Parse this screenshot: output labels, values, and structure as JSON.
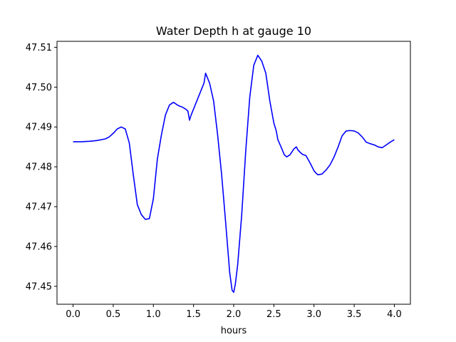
{
  "chart_data": {
    "type": "line",
    "title": "Water Depth h at gauge 10",
    "xlabel": "hours",
    "ylabel": "",
    "xlim": [
      -0.2,
      4.2
    ],
    "ylim": [
      47.4455,
      47.5115
    ],
    "grid": false,
    "x_ticks": [
      0.0,
      0.5,
      1.0,
      1.5,
      2.0,
      2.5,
      3.0,
      3.5,
      4.0
    ],
    "x_tick_labels": [
      "0.0",
      "0.5",
      "1.0",
      "1.5",
      "2.0",
      "2.5",
      "3.0",
      "3.5",
      "4.0"
    ],
    "y_ticks": [
      47.45,
      47.46,
      47.47,
      47.48,
      47.49,
      47.5,
      47.51
    ],
    "y_tick_labels": [
      "47.45",
      "47.46",
      "47.47",
      "47.48",
      "47.49",
      "47.50",
      "47.51"
    ],
    "series": [
      {
        "color": "#0000ff",
        "x": [
          0.0,
          0.1,
          0.2,
          0.3,
          0.4,
          0.45,
          0.5,
          0.55,
          0.6,
          0.65,
          0.7,
          0.75,
          0.8,
          0.85,
          0.9,
          0.95,
          1.0,
          1.05,
          1.1,
          1.15,
          1.2,
          1.25,
          1.3,
          1.33,
          1.36,
          1.4,
          1.43,
          1.45,
          1.47,
          1.5,
          1.55,
          1.6,
          1.63,
          1.65,
          1.67,
          1.7,
          1.75,
          1.8,
          1.85,
          1.9,
          1.95,
          1.98,
          2.0,
          2.02,
          2.05,
          2.1,
          2.15,
          2.2,
          2.25,
          2.3,
          2.35,
          2.4,
          2.45,
          2.5,
          2.53,
          2.55,
          2.6,
          2.63,
          2.66,
          2.7,
          2.75,
          2.78,
          2.8,
          2.82,
          2.85,
          2.9,
          2.95,
          3.0,
          3.03,
          3.05,
          3.1,
          3.15,
          3.2,
          3.25,
          3.3,
          3.35,
          3.4,
          3.45,
          3.5,
          3.55,
          3.6,
          3.65,
          3.7,
          3.75,
          3.8,
          3.85,
          3.9,
          3.95,
          4.0
        ],
        "values": [
          47.4863,
          47.4863,
          47.4864,
          47.4866,
          47.487,
          47.4875,
          47.4884,
          47.4895,
          47.49,
          47.4895,
          47.486,
          47.478,
          47.4705,
          47.468,
          47.4668,
          47.467,
          47.472,
          47.482,
          47.488,
          47.493,
          47.4955,
          47.4962,
          47.4955,
          47.4952,
          47.495,
          47.4945,
          47.494,
          47.4917,
          47.493,
          47.4945,
          47.497,
          47.4995,
          47.501,
          47.5035,
          47.5025,
          47.501,
          47.4965,
          47.488,
          47.478,
          47.466,
          47.4535,
          47.449,
          47.4485,
          47.4505,
          47.4555,
          47.468,
          47.484,
          47.4975,
          47.5055,
          47.508,
          47.5065,
          47.5035,
          47.4965,
          47.491,
          47.489,
          47.4868,
          47.4845,
          47.483,
          47.4825,
          47.483,
          47.4845,
          47.485,
          47.4842,
          47.4838,
          47.4832,
          47.4828,
          47.481,
          47.479,
          47.4783,
          47.478,
          47.4782,
          47.4792,
          47.4805,
          47.4825,
          47.485,
          47.4878,
          47.489,
          47.4891,
          47.489,
          47.4885,
          47.4875,
          47.4862,
          47.4858,
          47.4855,
          47.485,
          47.4848,
          47.4855,
          47.4862,
          47.4868
        ]
      }
    ]
  }
}
